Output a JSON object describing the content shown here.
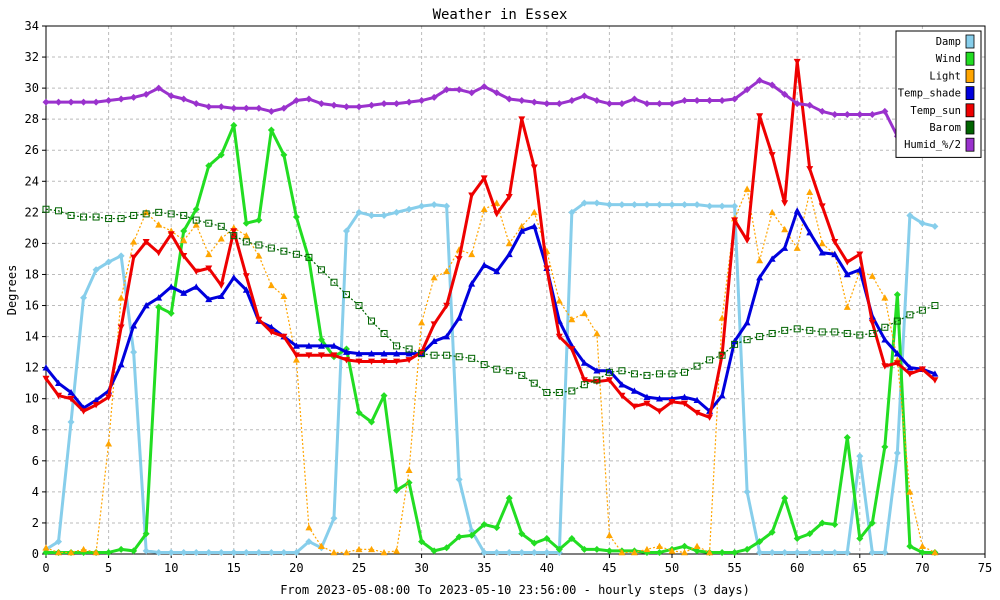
{
  "chart_data": {
    "type": "line",
    "title": "Weather in Essex",
    "xlabel": "From 2023-05-08:00 To 2023-05-10 23:56:00 - hourly steps (3 days)",
    "ylabel": "Degrees",
    "xlim": [
      0,
      75
    ],
    "ylim": [
      0,
      34
    ],
    "x_ticks": [
      0,
      5,
      10,
      15,
      20,
      25,
      30,
      35,
      40,
      45,
      50,
      55,
      60,
      65,
      70,
      75
    ],
    "y_ticks": [
      0,
      2,
      4,
      6,
      8,
      10,
      12,
      14,
      16,
      18,
      20,
      22,
      24,
      26,
      28,
      30,
      32,
      34
    ],
    "grid": true,
    "legend_position": "top-right",
    "series": [
      {
        "name": "Damp",
        "color": "#87CEEB",
        "marker": "diamond",
        "line_style": "solid",
        "x": [
          0,
          1,
          2,
          3,
          4,
          5,
          6,
          7,
          8,
          9,
          10,
          11,
          12,
          13,
          14,
          15,
          16,
          17,
          18,
          19,
          20,
          21,
          22,
          23,
          24,
          25,
          26,
          27,
          28,
          29,
          30,
          31,
          32,
          33,
          34,
          35,
          36,
          37,
          38,
          39,
          40,
          41,
          42,
          43,
          44,
          45,
          46,
          47,
          48,
          49,
          50,
          51,
          52,
          53,
          54,
          55,
          56,
          57,
          58,
          59,
          60,
          61,
          62,
          63,
          64,
          65,
          66,
          67,
          68,
          69,
          70,
          71
        ],
        "values": [
          0.3,
          0.8,
          8.5,
          16.5,
          18.3,
          18.8,
          19.2,
          13.0,
          0.2,
          0.1,
          0.1,
          0.1,
          0.1,
          0.1,
          0.1,
          0.1,
          0.1,
          0.1,
          0.1,
          0.1,
          0.1,
          0.8,
          0.4,
          2.3,
          20.8,
          22.0,
          21.8,
          21.8,
          22.0,
          22.2,
          22.4,
          22.5,
          22.4,
          4.8,
          1.5,
          0.1,
          0.1,
          0.1,
          0.1,
          0.1,
          0.1,
          0.1,
          22.0,
          22.6,
          22.6,
          22.5,
          22.5,
          22.5,
          22.5,
          22.5,
          22.5,
          22.5,
          22.5,
          22.4,
          22.4,
          22.4,
          4.0,
          0.1,
          0.1,
          0.1,
          0.1,
          0.1,
          0.1,
          0.1,
          0.1,
          6.3,
          0.1,
          0.1,
          6.5,
          21.8,
          21.3,
          21.1
        ]
      },
      {
        "name": "Wind",
        "color": "#22DD22",
        "marker": "diamond",
        "line_style": "solid",
        "x": [
          0,
          1,
          2,
          3,
          4,
          5,
          6,
          7,
          8,
          9,
          10,
          11,
          12,
          13,
          14,
          15,
          16,
          17,
          18,
          19,
          20,
          21,
          22,
          23,
          24,
          25,
          26,
          27,
          28,
          29,
          30,
          31,
          32,
          33,
          34,
          35,
          36,
          37,
          38,
          39,
          40,
          41,
          42,
          43,
          44,
          45,
          46,
          47,
          48,
          49,
          50,
          51,
          52,
          53,
          54,
          55,
          56,
          57,
          58,
          59,
          60,
          61,
          62,
          63,
          64,
          65,
          66,
          67,
          68,
          69,
          70,
          71
        ],
        "values": [
          0.1,
          0.1,
          0.1,
          0.1,
          0.1,
          0.1,
          0.3,
          0.2,
          1.3,
          15.9,
          15.5,
          20.8,
          22.2,
          25.0,
          25.7,
          27.6,
          21.3,
          21.5,
          27.3,
          25.7,
          21.7,
          19.0,
          13.8,
          12.7,
          13.2,
          9.1,
          8.5,
          10.2,
          4.1,
          4.6,
          0.8,
          0.2,
          0.4,
          1.1,
          1.2,
          1.9,
          1.7,
          3.6,
          1.3,
          0.7,
          1.0,
          0.3,
          1.0,
          0.3,
          0.3,
          0.2,
          0.2,
          0.2,
          0.1,
          0.1,
          0.3,
          0.5,
          0.2,
          0.1,
          0.1,
          0.1,
          0.3,
          0.8,
          1.4,
          3.6,
          1.0,
          1.3,
          2.0,
          1.9,
          7.5,
          1.0,
          2.0,
          6.9,
          16.7,
          0.5,
          0.1,
          0.1
        ]
      },
      {
        "name": "Light",
        "color": "#FFA500",
        "marker": "triangle",
        "line_style": "dotted",
        "x": [
          0,
          1,
          2,
          3,
          4,
          5,
          6,
          7,
          8,
          9,
          10,
          11,
          12,
          13,
          14,
          15,
          16,
          17,
          18,
          19,
          20,
          21,
          22,
          23,
          24,
          25,
          26,
          27,
          28,
          29,
          30,
          31,
          32,
          33,
          34,
          35,
          36,
          37,
          38,
          39,
          40,
          41,
          42,
          43,
          44,
          45,
          46,
          47,
          48,
          49,
          50,
          51,
          52,
          53,
          54,
          55,
          56,
          57,
          58,
          59,
          60,
          61,
          62,
          63,
          64,
          65,
          66,
          67,
          68,
          69,
          70,
          71
        ],
        "values": [
          0.4,
          0.1,
          0.1,
          0.3,
          0.1,
          7.1,
          16.5,
          20.1,
          22.0,
          21.2,
          20.8,
          20.2,
          21.2,
          19.3,
          20.3,
          21.0,
          20.5,
          19.2,
          17.3,
          16.6,
          12.5,
          1.7,
          0.5,
          0.1,
          0.1,
          0.3,
          0.3,
          0.1,
          0.2,
          5.4,
          14.9,
          17.8,
          18.2,
          19.6,
          19.3,
          22.2,
          22.6,
          20.0,
          21.1,
          22.0,
          19.5,
          16.3,
          15.1,
          15.5,
          14.2,
          1.2,
          0.1,
          0.1,
          0.3,
          0.5,
          0.2,
          0.1,
          0.5,
          0.1,
          15.2,
          21.6,
          23.5,
          18.9,
          22.0,
          20.9,
          19.7,
          23.3,
          20.0,
          19.3,
          15.9,
          18.2,
          17.9,
          16.5,
          12.5,
          4.0,
          0.5,
          0.1
        ]
      },
      {
        "name": "Temp_shade",
        "color": "#0000DD",
        "marker": "triangle",
        "line_style": "solid",
        "x": [
          0,
          1,
          2,
          3,
          4,
          5,
          6,
          7,
          8,
          9,
          10,
          11,
          12,
          13,
          14,
          15,
          16,
          17,
          18,
          19,
          20,
          21,
          22,
          23,
          24,
          25,
          26,
          27,
          28,
          29,
          30,
          31,
          32,
          33,
          34,
          35,
          36,
          37,
          38,
          39,
          40,
          41,
          42,
          43,
          44,
          45,
          46,
          47,
          48,
          49,
          50,
          51,
          52,
          53,
          54,
          55,
          56,
          57,
          58,
          59,
          60,
          61,
          62,
          63,
          64,
          65,
          66,
          67,
          68,
          69,
          70,
          71
        ],
        "values": [
          12.0,
          11.0,
          10.4,
          9.4,
          9.9,
          10.5,
          12.2,
          14.7,
          16.0,
          16.5,
          17.2,
          16.8,
          17.2,
          16.4,
          16.6,
          17.8,
          17.0,
          15.0,
          14.6,
          14.0,
          13.4,
          13.4,
          13.4,
          13.4,
          13.0,
          12.9,
          12.9,
          12.9,
          12.9,
          12.9,
          12.9,
          13.7,
          14.0,
          15.2,
          17.4,
          18.6,
          18.2,
          19.3,
          20.8,
          21.1,
          18.4,
          15.0,
          13.4,
          12.3,
          11.8,
          11.8,
          10.9,
          10.5,
          10.1,
          10.0,
          10.0,
          10.1,
          9.9,
          9.2,
          10.2,
          13.7,
          14.9,
          17.8,
          19.0,
          19.7,
          22.1,
          20.7,
          19.4,
          19.3,
          18.0,
          18.3,
          15.3,
          13.8,
          12.9,
          12.0,
          11.9,
          11.6
        ]
      },
      {
        "name": "Temp_sun",
        "color": "#EE0000",
        "marker": "triangle-down",
        "line_style": "solid",
        "x": [
          0,
          1,
          2,
          3,
          4,
          5,
          6,
          7,
          8,
          9,
          10,
          11,
          12,
          13,
          14,
          15,
          16,
          17,
          18,
          19,
          20,
          21,
          22,
          23,
          24,
          25,
          26,
          27,
          28,
          29,
          30,
          31,
          32,
          33,
          34,
          35,
          36,
          37,
          38,
          39,
          40,
          41,
          42,
          43,
          44,
          45,
          46,
          47,
          48,
          49,
          50,
          51,
          52,
          53,
          54,
          55,
          56,
          57,
          58,
          59,
          60,
          61,
          62,
          63,
          64,
          65,
          66,
          67,
          68,
          69,
          70,
          71
        ],
        "values": [
          11.3,
          10.2,
          10.0,
          9.2,
          9.6,
          10.1,
          14.6,
          19.1,
          20.1,
          19.4,
          20.6,
          19.2,
          18.2,
          18.4,
          17.3,
          20.8,
          17.9,
          15.1,
          14.3,
          14.0,
          12.8,
          12.8,
          12.8,
          12.8,
          12.5,
          12.4,
          12.4,
          12.4,
          12.4,
          12.5,
          13.0,
          14.8,
          16.0,
          19.0,
          23.1,
          24.2,
          21.9,
          23.0,
          28.0,
          24.9,
          18.4,
          14.0,
          13.2,
          11.2,
          11.1,
          11.2,
          10.2,
          9.5,
          9.7,
          9.2,
          9.8,
          9.7,
          9.1,
          8.8,
          12.8,
          21.5,
          20.2,
          28.2,
          25.7,
          22.6,
          31.7,
          24.8,
          22.4,
          20.1,
          18.8,
          19.3,
          14.9,
          12.1,
          12.3,
          11.6,
          11.9,
          11.2
        ]
      },
      {
        "name": "Barom",
        "color": "#006400",
        "marker": "square",
        "line_style": "dotted",
        "x": [
          0,
          1,
          2,
          3,
          4,
          5,
          6,
          7,
          8,
          9,
          10,
          11,
          12,
          13,
          14,
          15,
          16,
          17,
          18,
          19,
          20,
          21,
          22,
          23,
          24,
          25,
          26,
          27,
          28,
          29,
          30,
          31,
          32,
          33,
          34,
          35,
          36,
          37,
          38,
          39,
          40,
          41,
          42,
          43,
          44,
          45,
          46,
          47,
          48,
          49,
          50,
          51,
          52,
          53,
          54,
          55,
          56,
          57,
          58,
          59,
          60,
          61,
          62,
          63,
          64,
          65,
          66,
          67,
          68,
          69,
          70,
          71
        ],
        "values": [
          22.2,
          22.1,
          21.8,
          21.7,
          21.7,
          21.6,
          21.6,
          21.8,
          21.9,
          22.0,
          21.9,
          21.8,
          21.5,
          21.3,
          21.1,
          20.5,
          20.1,
          19.9,
          19.7,
          19.5,
          19.3,
          19.1,
          18.3,
          17.5,
          16.7,
          16.0,
          15.0,
          14.2,
          13.4,
          13.2,
          12.9,
          12.8,
          12.8,
          12.7,
          12.6,
          12.2,
          11.9,
          11.8,
          11.5,
          11.0,
          10.4,
          10.4,
          10.5,
          10.9,
          11.2,
          11.7,
          11.8,
          11.6,
          11.5,
          11.6,
          11.6,
          11.7,
          12.1,
          12.5,
          12.8,
          13.5,
          13.8,
          14.0,
          14.2,
          14.4,
          14.5,
          14.4,
          14.3,
          14.3,
          14.2,
          14.1,
          14.2,
          14.6,
          15.0,
          15.4,
          15.7,
          16.0
        ]
      },
      {
        "name": "Humid_%/2",
        "color": "#9A32CD",
        "marker": "diamond",
        "line_style": "solid",
        "x": [
          0,
          1,
          2,
          3,
          4,
          5,
          6,
          7,
          8,
          9,
          10,
          11,
          12,
          13,
          14,
          15,
          16,
          17,
          18,
          19,
          20,
          21,
          22,
          23,
          24,
          25,
          26,
          27,
          28,
          29,
          30,
          31,
          32,
          33,
          34,
          35,
          36,
          37,
          38,
          39,
          40,
          41,
          42,
          43,
          44,
          45,
          46,
          47,
          48,
          49,
          50,
          51,
          52,
          53,
          54,
          55,
          56,
          57,
          58,
          59,
          60,
          61,
          62,
          63,
          64,
          65,
          66,
          67,
          68,
          69,
          70,
          71
        ],
        "values": [
          29.1,
          29.1,
          29.1,
          29.1,
          29.1,
          29.2,
          29.3,
          29.4,
          29.6,
          30.0,
          29.5,
          29.3,
          29.0,
          28.8,
          28.8,
          28.7,
          28.7,
          28.7,
          28.5,
          28.7,
          29.2,
          29.3,
          29.0,
          28.9,
          28.8,
          28.8,
          28.9,
          29.0,
          29.0,
          29.1,
          29.2,
          29.4,
          29.9,
          29.9,
          29.7,
          30.1,
          29.7,
          29.3,
          29.2,
          29.1,
          29.0,
          29.0,
          29.2,
          29.5,
          29.2,
          29.0,
          29.0,
          29.3,
          29.0,
          29.0,
          29.0,
          29.2,
          29.2,
          29.2,
          29.2,
          29.3,
          29.9,
          30.5,
          30.2,
          29.6,
          29.0,
          28.9,
          28.5,
          28.3,
          28.3,
          28.3,
          28.3,
          28.5,
          26.9,
          null,
          null,
          null
        ]
      }
    ]
  }
}
